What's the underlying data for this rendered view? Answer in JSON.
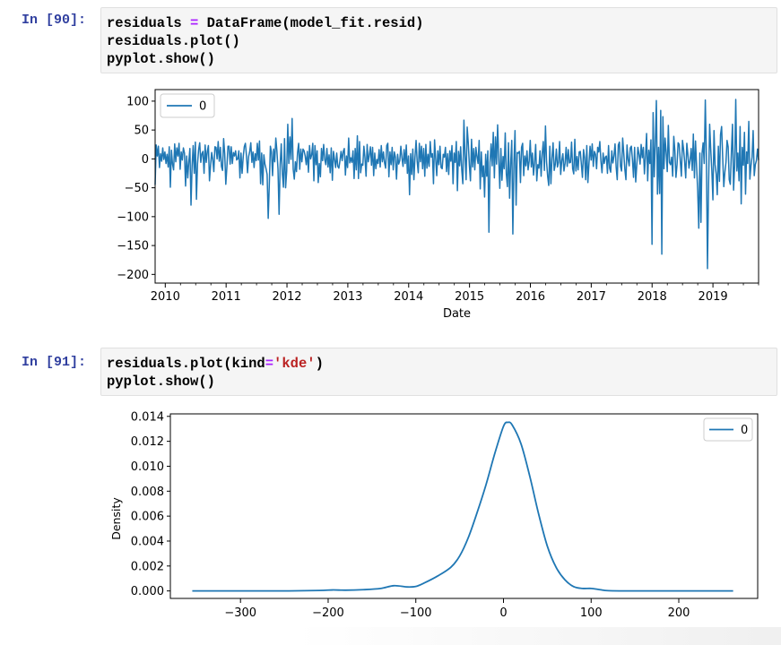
{
  "cells": [
    {
      "prompt": "In [90]:",
      "code_lines": [
        [
          {
            "t": "residuals "
          },
          {
            "t": "=",
            "c": "op"
          },
          {
            "t": " DataFrame(model_fit.resid)"
          }
        ],
        [
          {
            "t": "residuals.plot()"
          }
        ],
        [
          {
            "t": "pyplot.show()"
          }
        ]
      ]
    },
    {
      "prompt": "In [91]:",
      "code_lines": [
        [
          {
            "t": "residuals.plot(kind"
          },
          {
            "t": "=",
            "c": "op"
          },
          {
            "t": "'kde'",
            "c": "str"
          },
          {
            "t": ")"
          }
        ],
        [
          {
            "t": "pyplot.show()"
          }
        ]
      ]
    }
  ],
  "colors": {
    "series": "#1f77b4",
    "axis": "#000000"
  },
  "chart_data": [
    {
      "type": "line",
      "title": "",
      "xlabel": "Date",
      "ylabel": "",
      "xlim": [
        "2009-11",
        "2019-10"
      ],
      "ylim": [
        -215,
        120
      ],
      "xticks": [
        "2010",
        "2011",
        "2012",
        "2013",
        "2014",
        "2015",
        "2016",
        "2017",
        "2018",
        "2019"
      ],
      "yticks": [
        100,
        50,
        0,
        -50,
        -100,
        -150,
        -200
      ],
      "legend": {
        "entries": [
          "0"
        ],
        "position": "upper left"
      },
      "series": [
        {
          "name": "0",
          "x_start": "2009-11",
          "x_end": "2019-10",
          "frequency": "weekly",
          "values": [
            -45,
            24,
            5,
            22,
            -15,
            9,
            -4,
            19,
            -1,
            12,
            -8,
            8,
            -14,
            21,
            -49,
            15,
            -9,
            -19,
            26,
            -5,
            19,
            5,
            27,
            -18,
            12,
            -2,
            19,
            10,
            -47,
            5,
            -33,
            -4,
            18,
            -80,
            -12,
            23,
            -25,
            29,
            -70,
            -8,
            16,
            28,
            -6,
            9,
            13,
            -25,
            24,
            -6,
            13,
            23,
            -38,
            -11,
            11,
            -1,
            -22,
            21,
            20,
            0,
            30,
            -4,
            20,
            -13,
            -20,
            35,
            9,
            -44,
            -14,
            22,
            22,
            -9,
            21,
            -8,
            11,
            5,
            14,
            -2,
            0,
            14,
            -33,
            10,
            -25,
            3,
            21,
            27,
            6,
            -24,
            4,
            13,
            28,
            -6,
            12,
            -15,
            9,
            -3,
            27,
            -2,
            31,
            -43,
            10,
            -45,
            7,
            -9,
            -17,
            -27,
            -103,
            -45,
            22,
            12,
            -29,
            17,
            -5,
            36,
            14,
            -18,
            -96,
            -10,
            26,
            -26,
            -49,
            35,
            -50,
            -21,
            60,
            -8,
            38,
            -1,
            70,
            -18,
            -35,
            -5,
            -22,
            11,
            27,
            -18,
            17,
            -5,
            17,
            14,
            5,
            -10,
            13,
            -23,
            23,
            0,
            7,
            27,
            -38,
            23,
            -10,
            14,
            -41,
            -8,
            -31,
            18,
            -3,
            25,
            -1,
            -10,
            18,
            -14,
            7,
            -24,
            19,
            -37,
            13,
            -1,
            -15,
            10,
            -13,
            -16,
            -3,
            13,
            -3,
            13,
            18,
            -28,
            5,
            -15,
            36,
            -7,
            2,
            -6,
            14,
            -34,
            18,
            -19,
            40,
            -34,
            30,
            -24,
            -9,
            -11,
            22,
            2,
            -30,
            25,
            -5,
            6,
            21,
            -11,
            20,
            -29,
            10,
            -17,
            -1,
            -8,
            16,
            -14,
            23,
            -5,
            12,
            -7,
            -16,
            23,
            27,
            -31,
            12,
            -10,
            20,
            -19,
            12,
            3,
            -35,
            8,
            -9,
            -3,
            22,
            2,
            -13,
            16,
            -8,
            24,
            -25,
            5,
            -62,
            9,
            -27,
            17,
            -36,
            3,
            32,
            -4,
            -24,
            27,
            -5,
            22,
            -17,
            18,
            -30,
            25,
            -16,
            8,
            -13,
            30,
            3,
            9,
            -43,
            33,
            1,
            -29,
            14,
            -10,
            22,
            -15,
            -17,
            8,
            3,
            20,
            -22,
            9,
            -27,
            14,
            -4,
            23,
            -43,
            10,
            -6,
            30,
            -55,
            13,
            -12,
            21,
            -19,
            -43,
            67,
            6,
            -36,
            55,
            28,
            -11,
            -38,
            34,
            -14,
            18,
            -19,
            20,
            4,
            -8,
            32,
            -52,
            12,
            -31,
            -12,
            -66,
            8,
            -30,
            14,
            -127,
            -6,
            26,
            -12,
            46,
            -33,
            38,
            -9,
            59,
            2,
            -51,
            18,
            -37,
            4,
            -17,
            45,
            -26,
            -48,
            28,
            -68,
            -8,
            32,
            -130,
            -7,
            49,
            -80,
            11,
            10,
            13,
            -41,
            20,
            27,
            -29,
            5,
            -12,
            14,
            -19,
            -4,
            32,
            -14,
            10,
            -28,
            -6,
            25,
            -38,
            -10,
            -16,
            14,
            -30,
            9,
            30,
            -20,
            57,
            -5,
            -30,
            -46,
            22,
            -43,
            1,
            28,
            -20,
            -10,
            17,
            -14,
            -6,
            30,
            -27,
            -3,
            9,
            -21,
            -8,
            20,
            -13,
            16,
            -7,
            -6,
            29,
            -17,
            -26,
            34,
            -21,
            4,
            -19,
            12,
            13,
            -9,
            -32,
            16,
            2,
            -36,
            23,
            -41,
            -8,
            22,
            -2,
            26,
            -13,
            13,
            8,
            -17,
            20,
            12,
            30,
            -4,
            -24,
            10,
            -8,
            3,
            5,
            -25,
            23,
            -16,
            -23,
            14,
            -7,
            5,
            26,
            -14,
            -36,
            24,
            29,
            -13,
            -21,
            36,
            10,
            -18,
            -36,
            24,
            -1,
            -12,
            19,
            22,
            -2,
            -32,
            20,
            -40,
            -10,
            20,
            8,
            -9,
            25,
            2,
            20,
            -26,
            5,
            44,
            -38,
            15,
            -8,
            33,
            -148,
            80,
            -31,
            25,
            101,
            -61,
            20,
            -60,
            84,
            -165,
            73,
            -17,
            36,
            11,
            -22,
            58,
            -6,
            -10,
            3,
            -30,
            39,
            14,
            -32,
            -10,
            28,
            25,
            -4,
            -30,
            32,
            17,
            -5,
            -33,
            27,
            7,
            -16,
            -2,
            18,
            -20,
            43,
            -33,
            31,
            -13,
            -55,
            -120,
            10,
            -110,
            9,
            28,
            -8,
            102,
            4,
            -190,
            -45,
            60,
            16,
            -20,
            -71,
            49,
            -10,
            -26,
            -62,
            22,
            -39,
            42,
            56,
            2,
            -48,
            -23,
            -6,
            32,
            21,
            -36,
            -44,
            11,
            60,
            -54,
            -12,
            103,
            -21,
            10,
            -38,
            56,
            -78,
            20,
            -11,
            46,
            -61,
            12,
            -8,
            65,
            -35,
            -12,
            3,
            49,
            -29,
            -10,
            -3,
            17,
            -2
          ]
        }
      ]
    },
    {
      "type": "line",
      "title": "",
      "xlabel": "",
      "ylabel": "Density",
      "xlim": [
        -380,
        290
      ],
      "ylim": [
        -0.0006,
        0.0142
      ],
      "xticks": [
        -300,
        -200,
        -100,
        0,
        100,
        200
      ],
      "yticks": [
        0.0,
        0.002,
        0.004,
        0.006,
        0.008,
        0.01,
        0.012,
        0.014
      ],
      "ytick_labels": [
        "0.000",
        "0.002",
        "0.004",
        "0.006",
        "0.008",
        "0.010",
        "0.012",
        "0.014"
      ],
      "legend": {
        "entries": [
          "0"
        ],
        "position": "upper right"
      },
      "series": [
        {
          "name": "0",
          "x": [
            -355,
            -300,
            -250,
            -210,
            -195,
            -180,
            -160,
            -140,
            -125,
            -110,
            -100,
            -90,
            -75,
            -60,
            -50,
            -40,
            -30,
            -20,
            -10,
            0,
            5,
            10,
            20,
            30,
            40,
            50,
            60,
            70,
            80,
            90,
            100,
            110,
            120,
            150,
            200,
            262
          ],
          "y": [
            0.0,
            0.0,
            0.0,
            4e-05,
            8e-05,
            6e-05,
            0.0001,
            0.0002,
            0.00042,
            0.00032,
            0.00036,
            0.00065,
            0.0012,
            0.0019,
            0.0028,
            0.0043,
            0.0063,
            0.0085,
            0.011,
            0.0132,
            0.01352,
            0.0133,
            0.0118,
            0.0092,
            0.0062,
            0.0036,
            0.0019,
            0.0009,
            0.00035,
            0.0002,
            0.0002,
            0.0001,
            2e-05,
            0.0,
            0.0,
            0.0
          ]
        }
      ]
    }
  ]
}
